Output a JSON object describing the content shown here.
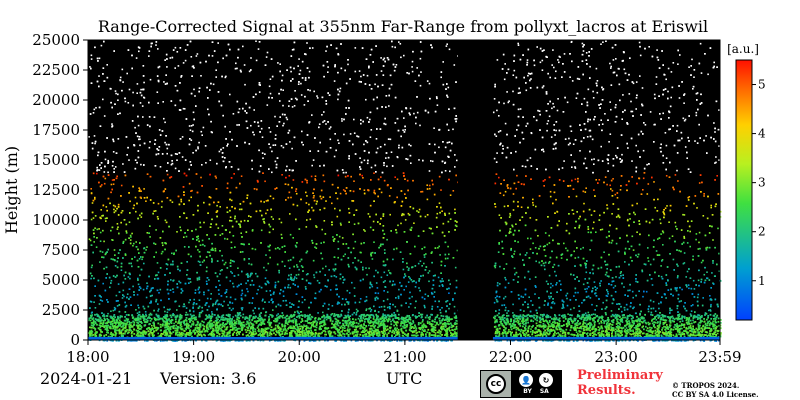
{
  "chart_data": {
    "type": "heatmap",
    "title": "Range-Corrected Signal at 355nm Far-Range from pollyxt_lacros at Eriswil",
    "xlabel": "UTC",
    "ylabel": "Height (m)",
    "x_tick_labels": [
      "18:00",
      "19:00",
      "20:00",
      "21:00",
      "22:00",
      "23:00",
      "23:59"
    ],
    "y_tick_labels": [
      "0",
      "2500",
      "5000",
      "7500",
      "10000",
      "12500",
      "15000",
      "17500",
      "20000",
      "22500",
      "25000"
    ],
    "ylim": [
      0,
      25000
    ],
    "colorbar": {
      "label": "[a.u.]",
      "tick_labels": [
        "1",
        "2",
        "3",
        "4",
        "5"
      ],
      "range": [
        0.2,
        5.5
      ],
      "colormap": "jet"
    },
    "data_gap": {
      "start": "21:30",
      "end": "21:50"
    },
    "signal_profile": [
      {
        "height": 0,
        "value": 1.0
      },
      {
        "height": 500,
        "value": 2.8
      },
      {
        "height": 1500,
        "value": 2.5
      },
      {
        "height": 2500,
        "value": 1.8
      },
      {
        "height": 4000,
        "value": 1.3
      },
      {
        "height": 6000,
        "value": 2.0
      },
      {
        "height": 8000,
        "value": 2.6
      },
      {
        "height": 10000,
        "value": 3.3
      },
      {
        "height": 11000,
        "value": 3.8
      },
      {
        "height": 12500,
        "value": 4.6
      },
      {
        "height": 14000,
        "value": 5.2
      },
      {
        "height": 25000,
        "value": 5.5
      }
    ],
    "background": "#000000"
  },
  "footer": {
    "date": "2024-01-21",
    "version": "Version: 3.6",
    "preliminary_line1": "Preliminary",
    "preliminary_line2": "Results.",
    "copyright_line1": "© TROPOS 2024.",
    "copyright_line2": "CC BY SA 4.0 License.",
    "license_badge": {
      "main": "cc",
      "icons": [
        "BY",
        "SA"
      ]
    }
  },
  "colors": {
    "preliminary": "#f0333a"
  }
}
